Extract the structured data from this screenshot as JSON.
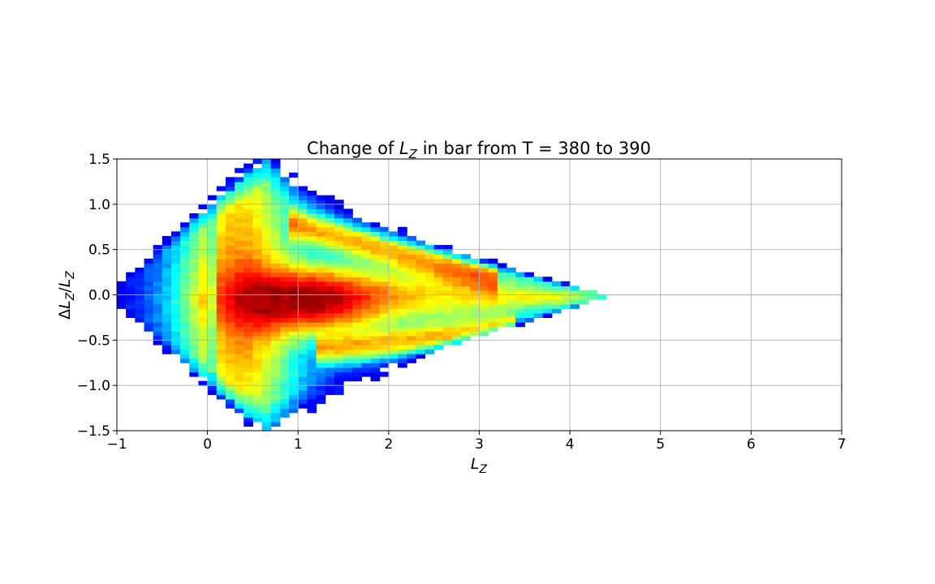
{
  "chart_data": {
    "type": "heatmap",
    "title": "Change of L_Z in bar from T = 380 to 390",
    "title_parts": {
      "before": "Change of ",
      "symbol": "L",
      "sub": "Z",
      "after": " in bar from T = 380 to 390"
    },
    "xlabel": "L_Z",
    "xlabel_parts": {
      "symbol": "L",
      "sub": "Z"
    },
    "ylabel": "ΔL_Z/L_Z",
    "ylabel_parts": {
      "delta": "Δ",
      "symbol1": "L",
      "sub1": "Z",
      "slash": "/",
      "symbol2": "L",
      "sub2": "Z"
    },
    "xlim": [
      -1,
      7
    ],
    "ylim": [
      -1.5,
      1.5
    ],
    "x_ticks": [
      -1,
      0,
      1,
      2,
      3,
      4,
      5,
      6,
      7
    ],
    "x_tick_labels": [
      "−1",
      "0",
      "1",
      "2",
      "3",
      "4",
      "5",
      "6",
      "7"
    ],
    "y_ticks": [
      -1.5,
      -1.0,
      -0.5,
      0.0,
      0.5,
      1.0,
      1.5
    ],
    "y_tick_labels": [
      "−1.5",
      "−1.0",
      "−0.5",
      "0.0",
      "0.5",
      "1.0",
      "1.5"
    ],
    "grid": true,
    "colormap": "jet",
    "bin_width_x": 0.1,
    "bin_width_y": 0.05,
    "density_features": {
      "core_center": [
        1.1,
        -0.05
      ],
      "max_extent_x": 4.35,
      "upper_arm": {
        "from": [
          1.0,
          0.8
        ],
        "to": [
          3.2,
          0.15
        ]
      },
      "lower_arm": {
        "from": [
          1.3,
          -0.65
        ],
        "to": [
          3.4,
          -0.4
        ]
      },
      "vertical_band_x": [
        0.0,
        0.6
      ],
      "gap_x": 0.05
    }
  }
}
